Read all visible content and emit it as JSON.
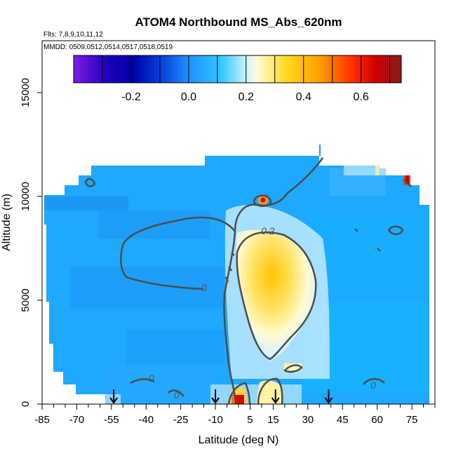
{
  "chart_data": {
    "type": "heatmap",
    "title": "ATOM4 Northbound MS_Abs_620nm",
    "flights_note": "Flts: 7,8,9,10,11,12",
    "dates_note": "MMDD: 0509,0512,0514,0517,0518,0519",
    "xlabel": "Latitude (deg N)",
    "ylabel": "Altitude (m)",
    "xlim": [
      -85,
      85
    ],
    "ylim": [
      0,
      17500
    ],
    "x_ticks": [
      -85,
      -70,
      -55,
      -40,
      -25,
      -10,
      5,
      15,
      30,
      45,
      60,
      75
    ],
    "x_tick_labels": [
      "-85",
      "-70",
      "-55",
      "-40",
      "-25",
      "-10",
      "5",
      "15",
      "30",
      "45",
      "60",
      "75"
    ],
    "x_minor_ticks": [
      -80,
      -75,
      -65,
      -60,
      -50,
      -45,
      -35,
      -30,
      -20,
      -15,
      -5,
      0,
      10,
      20,
      25,
      35,
      40,
      50,
      55,
      65,
      70,
      80,
      85
    ],
    "y_ticks": [
      0,
      5000,
      10000,
      15000
    ],
    "y_tick_labels": [
      "0",
      "5000",
      "10000",
      "15000"
    ],
    "colorbar": {
      "range": [
        -0.4,
        0.74
      ],
      "ticks": [
        -0.2,
        0.0,
        0.2,
        0.4,
        0.6
      ],
      "tick_labels": [
        "-0.2",
        "0.0",
        "0.2",
        "0.4",
        "0.6"
      ],
      "colors": [
        "#7d1ee0",
        "#1a00c8",
        "#0000a0",
        "#0a3ad8",
        "#1e90ff",
        "#1ec8ff",
        "#c8f0ff",
        "#fffac8",
        "#ffd11a",
        "#ffa500",
        "#ff6400",
        "#ff0000",
        "#c80000",
        "#8b1a1a"
      ]
    },
    "contour_labels": [
      "0.2",
      "0",
      "0",
      "0",
      "0"
    ],
    "profile_markers_latitude": [
      -54,
      -10,
      16,
      39
    ],
    "field_description_cells": [
      {
        "lat": [
          -85,
          -70
        ],
        "alt": [
          0,
          10500
        ],
        "value": 0.05
      },
      {
        "lat": [
          -70,
          -10
        ],
        "alt": [
          1000,
          11000
        ],
        "value": 0.03
      },
      {
        "lat": [
          -10,
          0
        ],
        "alt": [
          0,
          11500
        ],
        "value": 0.05
      },
      {
        "lat": [
          0,
          20
        ],
        "alt": [
          1500,
          8500
        ],
        "value": 0.35
      },
      {
        "lat": [
          20,
          35
        ],
        "alt": [
          2000,
          8000
        ],
        "value": 0.2
      },
      {
        "lat": [
          35,
          80
        ],
        "alt": [
          0,
          12000
        ],
        "value": 0.07
      },
      {
        "lat": [
          10,
          10
        ],
        "alt": [
          10300,
          10300
        ],
        "value": 0.62
      },
      {
        "lat": [
          2,
          2
        ],
        "alt": [
          200,
          200
        ],
        "value": 0.6
      },
      {
        "lat": [
          72,
          72
        ],
        "alt": [
          10600,
          10600
        ],
        "value": 0.55
      }
    ]
  }
}
